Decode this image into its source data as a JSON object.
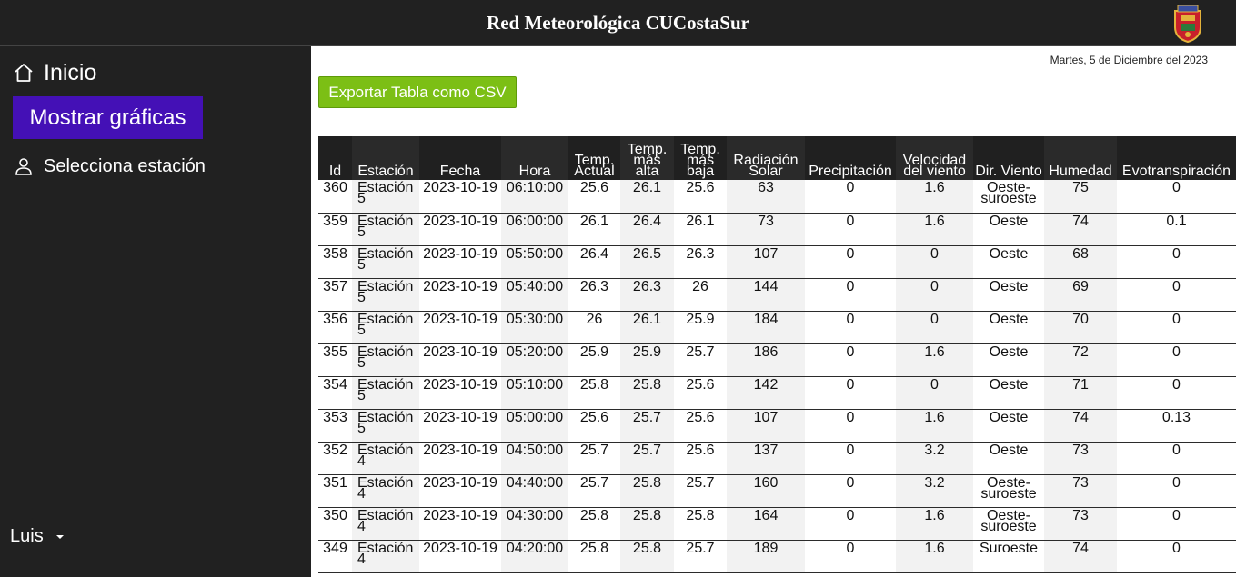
{
  "header": {
    "title": "Red Meteorológica CUCostaSur",
    "crest_icon": "university-crest-icon"
  },
  "sidebar": {
    "home_label": "Inicio",
    "charts_button": "Mostrar gráficas",
    "station_label": "Selecciona estación",
    "user_name": "Luis"
  },
  "main": {
    "date": "Martes, 5 de Diciembre del 2023",
    "export_button": "Exportar Tabla como CSV"
  },
  "colors": {
    "topbar": "#212121",
    "charts_button": "#4410b6",
    "export_button": "#7cbf15"
  },
  "table": {
    "columns": [
      "Id",
      "Estación",
      "Fecha",
      "Hora",
      "Temp. Actual",
      "Temp. más alta",
      "Temp. más baja",
      "Radiación Solar",
      "Precipitación",
      "Velocidad del viento",
      "Dir. Viento",
      "Humedad",
      "Evotranspiración"
    ],
    "rows": [
      [
        "360",
        "Estación 5",
        "2023-10-19",
        "06:10:00",
        "25.6",
        "26.1",
        "25.6",
        "63",
        "0",
        "1.6",
        "Oeste-suroeste",
        "75",
        "0"
      ],
      [
        "359",
        "Estación 5",
        "2023-10-19",
        "06:00:00",
        "26.1",
        "26.4",
        "26.1",
        "73",
        "0",
        "1.6",
        "Oeste",
        "74",
        "0.1"
      ],
      [
        "358",
        "Estación 5",
        "2023-10-19",
        "05:50:00",
        "26.4",
        "26.5",
        "26.3",
        "107",
        "0",
        "0",
        "Oeste",
        "68",
        "0"
      ],
      [
        "357",
        "Estación 5",
        "2023-10-19",
        "05:40:00",
        "26.3",
        "26.3",
        "26",
        "144",
        "0",
        "0",
        "Oeste",
        "69",
        "0"
      ],
      [
        "356",
        "Estación 5",
        "2023-10-19",
        "05:30:00",
        "26",
        "26.1",
        "25.9",
        "184",
        "0",
        "0",
        "Oeste",
        "70",
        "0"
      ],
      [
        "355",
        "Estación 5",
        "2023-10-19",
        "05:20:00",
        "25.9",
        "25.9",
        "25.7",
        "186",
        "0",
        "1.6",
        "Oeste",
        "72",
        "0"
      ],
      [
        "354",
        "Estación 5",
        "2023-10-19",
        "05:10:00",
        "25.8",
        "25.8",
        "25.6",
        "142",
        "0",
        "0",
        "Oeste",
        "71",
        "0"
      ],
      [
        "353",
        "Estación 5",
        "2023-10-19",
        "05:00:00",
        "25.6",
        "25.7",
        "25.6",
        "107",
        "0",
        "1.6",
        "Oeste",
        "74",
        "0.13"
      ],
      [
        "352",
        "Estación 4",
        "2023-10-19",
        "04:50:00",
        "25.7",
        "25.7",
        "25.6",
        "137",
        "0",
        "3.2",
        "Oeste",
        "73",
        "0"
      ],
      [
        "351",
        "Estación 4",
        "2023-10-19",
        "04:40:00",
        "25.7",
        "25.8",
        "25.7",
        "160",
        "0",
        "3.2",
        "Oeste-suroeste",
        "73",
        "0"
      ],
      [
        "350",
        "Estación 4",
        "2023-10-19",
        "04:30:00",
        "25.8",
        "25.8",
        "25.8",
        "164",
        "0",
        "1.6",
        "Oeste-suroeste",
        "73",
        "0"
      ],
      [
        "349",
        "Estación 4",
        "2023-10-19",
        "04:20:00",
        "25.8",
        "25.8",
        "25.7",
        "189",
        "0",
        "1.6",
        "Suroeste",
        "74",
        "0"
      ]
    ]
  }
}
